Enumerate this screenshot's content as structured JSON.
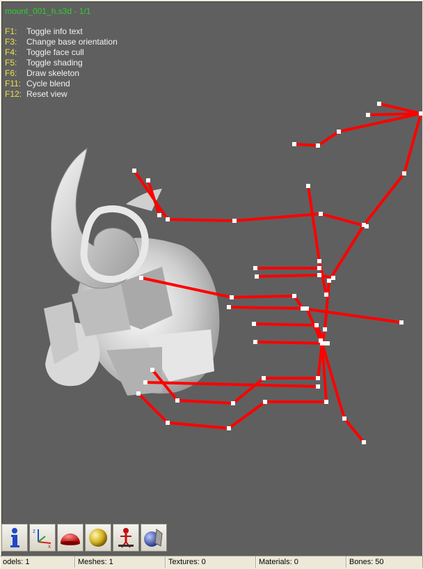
{
  "viewer": {
    "title": "mount_001_h.s3d - 1/1",
    "shortcuts": [
      {
        "key": "F1:",
        "action": "Toggle info text"
      },
      {
        "key": "F3:",
        "action": "Change base orientation"
      },
      {
        "key": "F4:",
        "action": "Toggle face cull"
      },
      {
        "key": "F5:",
        "action": "Toggle shading"
      },
      {
        "key": "F6:",
        "action": "Draw skeleton"
      },
      {
        "key": "F11:",
        "action": "Cycle blend"
      },
      {
        "key": "F12:",
        "action": "Reset view"
      }
    ]
  },
  "toolbar": {
    "buttons": [
      {
        "icon": "info-icon"
      },
      {
        "icon": "axes-icon"
      },
      {
        "icon": "red-dome-icon"
      },
      {
        "icon": "gold-sphere-icon"
      },
      {
        "icon": "skeleton-figure-icon"
      },
      {
        "icon": "textured-sphere-icon"
      }
    ]
  },
  "status": {
    "models": "odels: 1",
    "meshes": "Meshes: 1",
    "textures": "Textures: 0",
    "materials": "Materials: 0",
    "bones": "Bones: 50"
  },
  "colors": {
    "viewport_bg": "#5f5f5f",
    "bone": "#ff0000",
    "title": "#2cd02c",
    "shortcut_key": "#f0e14a",
    "shortcut_text": "#f2f2f2"
  }
}
